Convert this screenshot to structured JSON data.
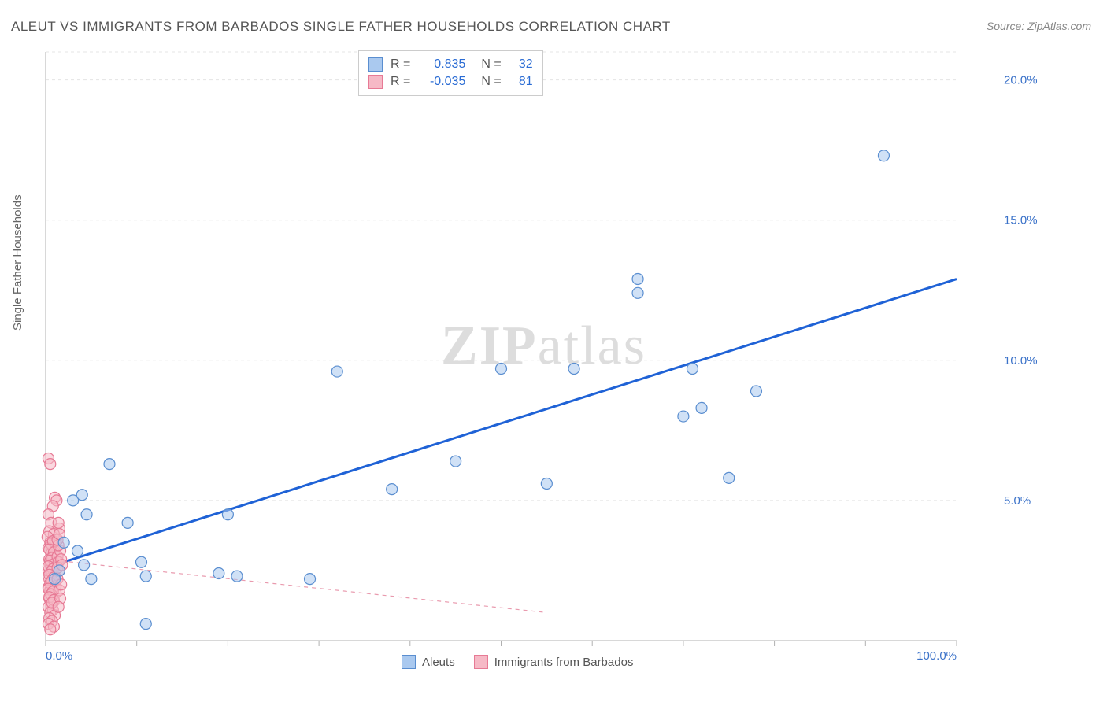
{
  "title": "ALEUT VS IMMIGRANTS FROM BARBADOS SINGLE FATHER HOUSEHOLDS CORRELATION CHART",
  "source": "Source: ZipAtlas.com",
  "y_axis_label": "Single Father Households",
  "watermark_bold": "ZIP",
  "watermark_rest": "atlas",
  "chart": {
    "type": "scatter",
    "xlim": [
      0,
      100
    ],
    "ylim": [
      0,
      21
    ],
    "x_ticks": [
      0,
      10,
      20,
      30,
      40,
      50,
      60,
      70,
      80,
      90,
      100
    ],
    "x_tick_labels": {
      "0": "0.0%",
      "100": "100.0%"
    },
    "y_ticks": [
      5,
      10,
      15,
      20
    ],
    "y_tick_labels": {
      "5": "5.0%",
      "10": "10.0%",
      "15": "15.0%",
      "20": "20.0%"
    },
    "grid_color": "#e4e4e4",
    "axis_color": "#b0b0b0",
    "tick_label_color": "#3b72c9",
    "tick_label_fontsize": 15,
    "background_color": "#ffffff",
    "marker_radius": 7,
    "marker_stroke_width": 1.2,
    "series": [
      {
        "name": "Aleuts",
        "fill": "#aac9ef",
        "stroke": "#5a8ed0",
        "fill_opacity": 0.55,
        "trend": {
          "x1": 0,
          "y1": 2.6,
          "x2": 100,
          "y2": 12.9,
          "stroke": "#1f62d6",
          "width": 3,
          "dash": "none"
        },
        "points": [
          [
            7,
            6.3
          ],
          [
            3.5,
            3.2
          ],
          [
            4.2,
            2.7
          ],
          [
            5,
            2.2
          ],
          [
            9,
            4.2
          ],
          [
            11,
            0.6
          ],
          [
            10.5,
            2.8
          ],
          [
            11,
            2.3
          ],
          [
            19,
            2.4
          ],
          [
            20,
            4.5
          ],
          [
            21,
            2.3
          ],
          [
            29,
            2.2
          ],
          [
            32,
            9.6
          ],
          [
            38,
            5.4
          ],
          [
            45,
            6.4
          ],
          [
            50,
            9.7
          ],
          [
            55,
            5.6
          ],
          [
            58,
            9.7
          ],
          [
            65,
            12.4
          ],
          [
            65,
            12.9
          ],
          [
            71,
            9.7
          ],
          [
            70,
            8.0
          ],
          [
            72,
            8.3
          ],
          [
            75,
            5.8
          ],
          [
            78,
            8.9
          ],
          [
            92,
            17.3
          ],
          [
            3,
            5
          ],
          [
            4,
            5.2
          ],
          [
            4.5,
            4.5
          ],
          [
            2,
            3.5
          ],
          [
            1.5,
            2.5
          ],
          [
            1,
            2.2
          ]
        ]
      },
      {
        "name": "Immigrants from Barbados",
        "fill": "#f6b9c6",
        "stroke": "#e77a95",
        "fill_opacity": 0.55,
        "trend": {
          "x1": 0,
          "y1": 2.9,
          "x2": 55,
          "y2": 1.0,
          "stroke": "#e99aae",
          "width": 1.2,
          "dash": "5,5"
        },
        "points": [
          [
            0.3,
            6.5
          ],
          [
            0.5,
            6.3
          ],
          [
            1.0,
            5.1
          ],
          [
            1.2,
            5.0
          ],
          [
            0.8,
            4.8
          ],
          [
            0.3,
            4.5
          ],
          [
            0.6,
            4.2
          ],
          [
            1.5,
            4.0
          ],
          [
            0.4,
            3.9
          ],
          [
            0.9,
            3.8
          ],
          [
            0.2,
            3.7
          ],
          [
            1.1,
            3.6
          ],
          [
            0.5,
            3.5
          ],
          [
            0.7,
            3.4
          ],
          [
            0.3,
            3.3
          ],
          [
            1.0,
            3.2
          ],
          [
            0.6,
            3.1
          ],
          [
            0.8,
            3.0
          ],
          [
            0.4,
            2.9
          ],
          [
            1.2,
            2.8
          ],
          [
            0.5,
            2.7
          ],
          [
            0.9,
            2.6
          ],
          [
            0.3,
            2.5
          ],
          [
            0.7,
            2.4
          ],
          [
            1.0,
            2.3
          ],
          [
            0.4,
            2.2
          ],
          [
            0.6,
            2.1
          ],
          [
            0.8,
            2.0
          ],
          [
            0.3,
            1.9
          ],
          [
            0.5,
            1.8
          ],
          [
            1.1,
            1.7
          ],
          [
            0.7,
            1.6
          ],
          [
            0.4,
            1.5
          ],
          [
            0.9,
            1.4
          ],
          [
            0.6,
            1.3
          ],
          [
            0.3,
            1.2
          ],
          [
            0.8,
            1.1
          ],
          [
            0.5,
            1.0
          ],
          [
            1.0,
            0.9
          ],
          [
            0.4,
            0.8
          ],
          [
            0.7,
            0.7
          ],
          [
            0.3,
            0.6
          ],
          [
            0.9,
            0.5
          ],
          [
            0.5,
            0.4
          ],
          [
            0.6,
            3.45
          ],
          [
            0.8,
            3.55
          ],
          [
            0.4,
            3.25
          ],
          [
            0.9,
            3.15
          ],
          [
            0.7,
            2.95
          ],
          [
            0.5,
            2.85
          ],
          [
            1.0,
            2.75
          ],
          [
            0.3,
            2.65
          ],
          [
            0.8,
            2.55
          ],
          [
            0.6,
            2.45
          ],
          [
            0.4,
            2.35
          ],
          [
            0.9,
            2.25
          ],
          [
            0.7,
            2.15
          ],
          [
            0.5,
            2.05
          ],
          [
            1.1,
            1.95
          ],
          [
            0.3,
            1.85
          ],
          [
            0.8,
            1.75
          ],
          [
            0.6,
            1.65
          ],
          [
            0.4,
            1.55
          ],
          [
            0.9,
            1.45
          ],
          [
            0.7,
            1.35
          ],
          [
            1.3,
            3.0
          ],
          [
            1.4,
            2.8
          ],
          [
            1.5,
            2.5
          ],
          [
            1.3,
            2.2
          ],
          [
            1.6,
            3.2
          ],
          [
            1.4,
            3.4
          ],
          [
            1.7,
            2.9
          ],
          [
            1.3,
            2.6
          ],
          [
            1.5,
            1.8
          ],
          [
            1.6,
            1.5
          ],
          [
            1.4,
            1.2
          ],
          [
            1.7,
            2.0
          ],
          [
            1.3,
            3.6
          ],
          [
            1.8,
            2.7
          ],
          [
            1.5,
            3.8
          ],
          [
            1.4,
            4.2
          ]
        ]
      }
    ],
    "correlation_box": [
      {
        "swatch_fill": "#aac9ef",
        "swatch_stroke": "#5a8ed0",
        "r_label": "R =",
        "r": "0.835",
        "n_label": "N =",
        "n": "32"
      },
      {
        "swatch_fill": "#f6b9c6",
        "swatch_stroke": "#e77a95",
        "r_label": "R =",
        "r": "-0.035",
        "n_label": "N =",
        "n": "81"
      }
    ],
    "bottom_legend": [
      {
        "swatch_fill": "#aac9ef",
        "swatch_stroke": "#5a8ed0",
        "label": "Aleuts"
      },
      {
        "swatch_fill": "#f6b9c6",
        "swatch_stroke": "#e77a95",
        "label": "Immigrants from Barbados"
      }
    ]
  }
}
